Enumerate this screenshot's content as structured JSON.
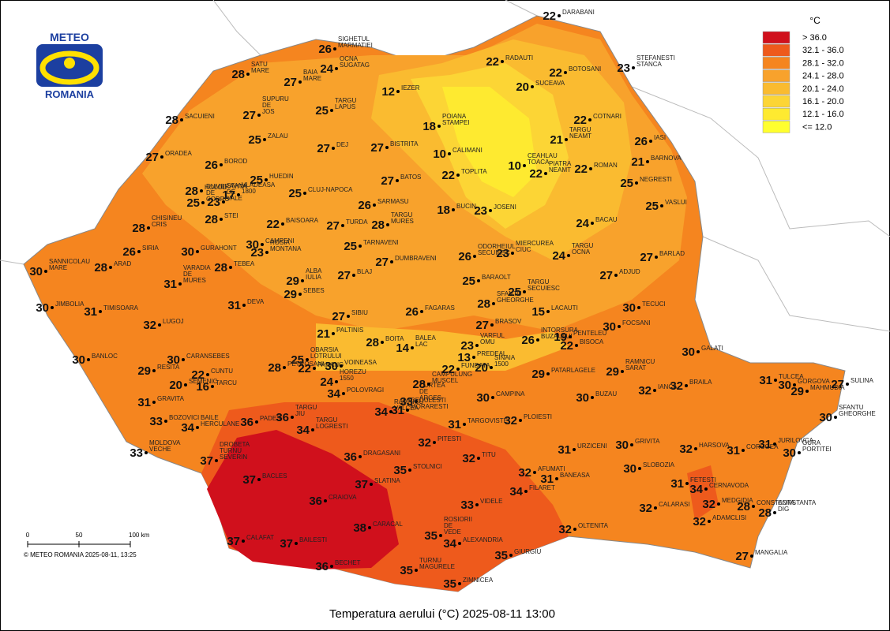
{
  "title": "Temperatura aerului (°C) 2025-08-11 13:00",
  "logo": {
    "top": "METEO",
    "bottom": "ROMANIA"
  },
  "legend": {
    "title": "°C",
    "items": [
      {
        "label": "> 36.0",
        "color": "#d0101c"
      },
      {
        "label": "32.1 - 36.0",
        "color": "#ee5a1c"
      },
      {
        "label": "28.1 - 32.0",
        "color": "#f5851f"
      },
      {
        "label": "24.1 - 28.0",
        "color": "#f8a22c"
      },
      {
        "label": "20.1 - 24.0",
        "color": "#fabb30"
      },
      {
        "label": "16.1 - 20.0",
        "color": "#fcd535"
      },
      {
        "label": "12.1 - 16.0",
        "color": "#feea30"
      },
      {
        "label": "<= 12.0",
        "color": "#ffff2e"
      }
    ]
  },
  "scale": {
    "ticks": [
      "0",
      "50",
      "100 km"
    ]
  },
  "copyright": "© METEO ROMANIA 2025-08-11, 13:25",
  "stations": [
    {
      "temp": 22,
      "name": [
        "DARABANI"
      ]
    },
    {
      "temp": 26,
      "name": [
        "SIGHETUL",
        "MARMATIEI"
      ]
    },
    {
      "temp": 24,
      "name": [
        "OCNA",
        "SUGATAG"
      ]
    },
    {
      "temp": 23,
      "name": [
        "STEFANESTI",
        "STANCA"
      ]
    },
    {
      "temp": 22,
      "name": [
        "RADAUTI"
      ]
    },
    {
      "temp": 22,
      "name": [
        "BOTOSANI"
      ]
    },
    {
      "temp": 28,
      "name": [
        "SATU",
        "MARE"
      ]
    },
    {
      "temp": 27,
      "name": [
        "BAIA",
        "MARE"
      ]
    },
    {
      "temp": 12,
      "name": [
        "IEZER"
      ]
    },
    {
      "temp": 20,
      "name": [
        "SUCEAVA"
      ]
    },
    {
      "temp": 27,
      "name": [
        "SUPURU",
        "DE",
        "JOS"
      ]
    },
    {
      "temp": 25,
      "name": [
        "TARGU",
        "LAPUS"
      ]
    },
    {
      "temp": 28,
      "name": [
        "SACUIENI"
      ]
    },
    {
      "temp": 18,
      "name": [
        "POIANA",
        "STAMPEI"
      ]
    },
    {
      "temp": 22,
      "name": [
        "COTNARI"
      ]
    },
    {
      "temp": 21,
      "name": [
        "TARGU",
        "NEAMT"
      ]
    },
    {
      "temp": 25,
      "name": [
        "ZALAU"
      ]
    },
    {
      "temp": 26,
      "name": [
        "IASI"
      ]
    },
    {
      "temp": 27,
      "name": [
        "DEJ"
      ]
    },
    {
      "temp": 27,
      "name": [
        "BISTRITA"
      ]
    },
    {
      "temp": 27,
      "name": [
        "ORADEA"
      ]
    },
    {
      "temp": 10,
      "name": [
        "CALIMANI"
      ]
    },
    {
      "temp": 21,
      "name": [
        "BARNOVA"
      ]
    },
    {
      "temp": 26,
      "name": [
        "BOROD"
      ]
    },
    {
      "temp": 10,
      "name": [
        "CEAHLAU",
        "TOACA"
      ]
    },
    {
      "temp": 22,
      "name": [
        "PIATRA",
        "NEAMT"
      ]
    },
    {
      "temp": 22,
      "name": [
        "ROMAN"
      ]
    },
    {
      "temp": 17,
      "name": [
        "VLADEASA",
        "1800"
      ]
    },
    {
      "temp": 25,
      "name": [
        "HUEDIN"
      ]
    },
    {
      "temp": 22,
      "name": [
        "TOPLITA"
      ]
    },
    {
      "temp": 27,
      "name": [
        "BATOS"
      ]
    },
    {
      "temp": 25,
      "name": [
        "NEGRESTI"
      ]
    },
    {
      "temp": 25,
      "name": [
        "CLUJ-NAPOCA"
      ]
    },
    {
      "temp": 28,
      "name": [
        "HOLOD"
      ]
    },
    {
      "temp": 23,
      "name": [
        "STANA",
        "DE",
        "VALE"
      ]
    },
    {
      "temp": 25,
      "name": [
        "DUMBRAVITA",
        "DE",
        "CODRU"
      ]
    },
    {
      "temp": 26,
      "name": [
        "SARMASU"
      ]
    },
    {
      "temp": 25,
      "name": [
        "VASLUI"
      ]
    },
    {
      "temp": 18,
      "name": [
        "BUCIN"
      ]
    },
    {
      "temp": 23,
      "name": [
        "JOSENI"
      ]
    },
    {
      "temp": 28,
      "name": [
        "CHISINEU",
        "CRIS"
      ]
    },
    {
      "temp": 28,
      "name": [
        "STEI"
      ]
    },
    {
      "temp": 22,
      "name": [
        "BAISOARA"
      ]
    },
    {
      "temp": 27,
      "name": [
        "TURDA"
      ]
    },
    {
      "temp": 28,
      "name": [
        "TARGU",
        "MURES"
      ]
    },
    {
      "temp": 24,
      "name": [
        "BACAU"
      ]
    },
    {
      "temp": 30,
      "name": [
        "CAMPENI"
      ]
    },
    {
      "temp": 23,
      "name": [
        "ROSIA",
        "MONTANA"
      ]
    },
    {
      "temp": 25,
      "name": [
        "TARNAVENI"
      ]
    },
    {
      "temp": 23,
      "name": [
        "MIERCUREA",
        "CIUC"
      ]
    },
    {
      "temp": 26,
      "name": [
        "SIRIA"
      ]
    },
    {
      "temp": 30,
      "name": [
        "GURAHONT"
      ]
    },
    {
      "temp": 26,
      "name": [
        "ODORHEIUL",
        "SECUIESC"
      ]
    },
    {
      "temp": 24,
      "name": [
        "TARGU",
        "OCNA"
      ]
    },
    {
      "temp": 27,
      "name": [
        "BARLAD"
      ]
    },
    {
      "temp": 30,
      "name": [
        "SANNICOLAU",
        "MARE"
      ]
    },
    {
      "temp": 28,
      "name": [
        "ARAD"
      ]
    },
    {
      "temp": 28,
      "name": [
        "TEBEA"
      ]
    },
    {
      "temp": 27,
      "name": [
        "DUMBRAVENI"
      ]
    },
    {
      "temp": 27,
      "name": [
        "BLAJ"
      ]
    },
    {
      "temp": 27,
      "name": [
        "ADJUD"
      ]
    },
    {
      "temp": 31,
      "name": [
        "VARADIA",
        "DE",
        "MURES"
      ]
    },
    {
      "temp": 29,
      "name": [
        "ALBA",
        "IULIA"
      ]
    },
    {
      "temp": 29,
      "name": [
        "SEBES"
      ]
    },
    {
      "temp": 25,
      "name": [
        "BARAOLT"
      ]
    },
    {
      "temp": 25,
      "name": [
        "TARGU",
        "SECUIESC"
      ]
    },
    {
      "temp": 30,
      "name": [
        "JIMBOLIA"
      ]
    },
    {
      "temp": 31,
      "name": [
        "TIMISOARA"
      ]
    },
    {
      "temp": 31,
      "name": [
        "DEVA"
      ]
    },
    {
      "temp": 26,
      "name": [
        "FAGARAS"
      ]
    },
    {
      "temp": 28,
      "name": [
        "SFANTU",
        "GHEORGHE"
      ]
    },
    {
      "temp": 15,
      "name": [
        "LACAUTI"
      ]
    },
    {
      "temp": 30,
      "name": [
        "TECUCI"
      ]
    },
    {
      "temp": 27,
      "name": [
        "SIBIU"
      ]
    },
    {
      "temp": 32,
      "name": [
        "LUGOJ"
      ]
    },
    {
      "temp": 27,
      "name": [
        "BRASOV"
      ]
    },
    {
      "temp": 30,
      "name": [
        "FOCSANI"
      ]
    },
    {
      "temp": 21,
      "name": [
        "PALTINIS"
      ]
    },
    {
      "temp": 28,
      "name": [
        "BOITA"
      ]
    },
    {
      "temp": 14,
      "name": [
        "BALEA",
        "LAC"
      ]
    },
    {
      "temp": 26,
      "name": [
        "INTORSURA",
        "BUZAULUI"
      ]
    },
    {
      "temp": 19,
      "name": [
        "PENTELEU"
      ]
    },
    {
      "temp": 22,
      "name": [
        "BISOCA"
      ]
    },
    {
      "temp": 30,
      "name": [
        "GALATI"
      ]
    },
    {
      "temp": 23,
      "name": [
        "VARFUL",
        "OMU"
      ]
    },
    {
      "temp": 13,
      "name": [
        "PREDEAL"
      ]
    },
    {
      "temp": 30,
      "name": [
        "BANLOC"
      ]
    },
    {
      "temp": 30,
      "name": [
        "CARANSEBES"
      ]
    },
    {
      "temp": 25,
      "name": [
        "OBARSIA",
        "LOTRULUI"
      ]
    },
    {
      "temp": 28,
      "name": [
        "PETROSANI"
      ]
    },
    {
      "temp": 22,
      "name": [
        "PARANG"
      ]
    },
    {
      "temp": 30,
      "name": [
        "VOINEASA"
      ]
    },
    {
      "temp": 22,
      "name": [
        "FUNDATA"
      ]
    },
    {
      "temp": 20,
      "name": [
        "SINAIA",
        "1500"
      ]
    },
    {
      "temp": 29,
      "name": [
        "RAMNICU",
        "SARAT"
      ]
    },
    {
      "temp": 29,
      "name": [
        "PATARLAGELE"
      ]
    },
    {
      "temp": 29,
      "name": [
        "RESITA"
      ]
    },
    {
      "temp": 22,
      "name": [
        "CUNTU"
      ]
    },
    {
      "temp": 16,
      "name": [
        "TARCU"
      ]
    },
    {
      "temp": 24,
      "name": [
        "HOREZU",
        "1550"
      ]
    },
    {
      "temp": 33,
      "name": [
        "CURTEA",
        "DE",
        "ARGES"
      ]
    },
    {
      "temp": 28,
      "name": [
        "CAMPULUNG",
        "MUSCEL"
      ]
    },
    {
      "temp": 20,
      "name": [
        "SEMENIC"
      ]
    },
    {
      "temp": 34,
      "name": [
        "POLOVRAGI"
      ]
    },
    {
      "temp": 34,
      "name": [
        "RAMNICU",
        "VALCEA"
      ]
    },
    {
      "temp": 31,
      "name": [
        "DEDULESTI",
        "MORARESTI"
      ]
    },
    {
      "temp": 30,
      "name": [
        "CAMPINA"
      ]
    },
    {
      "temp": 30,
      "name": [
        "BUZAU"
      ]
    },
    {
      "temp": 32,
      "name": [
        "BRAILA"
      ]
    },
    {
      "temp": 31,
      "name": [
        "TULCEA"
      ]
    },
    {
      "temp": 30,
      "name": [
        "GORGOVA"
      ]
    },
    {
      "temp": 29,
      "name": [
        "MAHMUDIA"
      ]
    },
    {
      "temp": 27,
      "name": [
        "SULINA"
      ]
    },
    {
      "temp": 31,
      "name": [
        "GRAVITA"
      ]
    },
    {
      "temp": 36,
      "name": [
        "PADES"
      ]
    },
    {
      "temp": 36,
      "name": [
        "TARGU",
        "JIU"
      ]
    },
    {
      "temp": 33,
      "name": [
        "BOZOVICI"
      ]
    },
    {
      "temp": 34,
      "name": [
        "BAILE",
        "HERCULANE"
      ]
    },
    {
      "temp": 32,
      "name": [
        "IANCA"
      ]
    },
    {
      "temp": 30,
      "name": [
        "SFANTU",
        "GHEORGHE"
      ]
    },
    {
      "temp": 34,
      "name": [
        "TARGU",
        "LOGRESTI"
      ]
    },
    {
      "temp": 32,
      "name": [
        "PLOIESTI"
      ]
    },
    {
      "temp": 31,
      "name": [
        "TARGOVISTE"
      ]
    },
    {
      "temp": 32,
      "name": [
        "PITESTI"
      ]
    },
    {
      "temp": 33,
      "name": [
        "MOLDOVA",
        "VECHE"
      ]
    },
    {
      "temp": 37,
      "name": [
        "DROBETA",
        "TURNU",
        "SEVERIN"
      ]
    },
    {
      "temp": 36,
      "name": [
        "DRAGASANI"
      ]
    },
    {
      "temp": 31,
      "name": [
        "URZICENI"
      ]
    },
    {
      "temp": 30,
      "name": [
        "GRIVITA"
      ]
    },
    {
      "temp": 32,
      "name": [
        "HARSOVA"
      ]
    },
    {
      "temp": 31,
      "name": [
        "CORUGEA"
      ]
    },
    {
      "temp": 31,
      "name": [
        "JURILOVCA"
      ]
    },
    {
      "temp": 30,
      "name": [
        "GURA",
        "PORTITEI"
      ]
    },
    {
      "temp": 32,
      "name": [
        "TITU"
      ]
    },
    {
      "temp": 35,
      "name": [
        "STOLNICI"
      ]
    },
    {
      "temp": 30,
      "name": [
        "SLOBOZIA"
      ]
    },
    {
      "temp": 32,
      "name": [
        "AFUMATI"
      ]
    },
    {
      "temp": 31,
      "name": [
        "BANEASA"
      ]
    },
    {
      "temp": 37,
      "name": [
        "BACLES"
      ]
    },
    {
      "temp": 37,
      "name": [
        "SLATINA"
      ]
    },
    {
      "temp": 34,
      "name": [
        "FILARET"
      ]
    },
    {
      "temp": 31,
      "name": [
        "FETESTI"
      ]
    },
    {
      "temp": 34,
      "name": [
        "CERNAVODA"
      ]
    },
    {
      "temp": 36,
      "name": [
        "CRAIOVA"
      ]
    },
    {
      "temp": 33,
      "name": [
        "VIDELE"
      ]
    },
    {
      "temp": 32,
      "name": [
        "CALARASI"
      ]
    },
    {
      "temp": 32,
      "name": [
        "MEDGIDIA"
      ]
    },
    {
      "temp": 28,
      "name": [
        "CONSTANTA"
      ]
    },
    {
      "temp": 28,
      "name": [
        "CONSTANTA",
        "DIG"
      ]
    },
    {
      "temp": 38,
      "name": [
        "CARACAL"
      ]
    },
    {
      "temp": 35,
      "name": [
        "ROSIORII",
        "DE",
        "VEDE"
      ]
    },
    {
      "temp": 32,
      "name": [
        "OLTENITA"
      ]
    },
    {
      "temp": 32,
      "name": [
        "ADAMCLISI"
      ]
    },
    {
      "temp": 37,
      "name": [
        "CALAFAT"
      ]
    },
    {
      "temp": 37,
      "name": [
        "BAILESTI"
      ]
    },
    {
      "temp": 34,
      "name": [
        "ALEXANDRIA"
      ]
    },
    {
      "temp": 35,
      "name": [
        "GIURGIU"
      ]
    },
    {
      "temp": 27,
      "name": [
        "MANGALIA"
      ]
    },
    {
      "temp": 36,
      "name": [
        "BECHET"
      ]
    },
    {
      "temp": 35,
      "name": [
        "TURNU",
        "MAGURELE"
      ]
    },
    {
      "temp": 35,
      "name": [
        "ZIMNICEA"
      ]
    }
  ]
}
